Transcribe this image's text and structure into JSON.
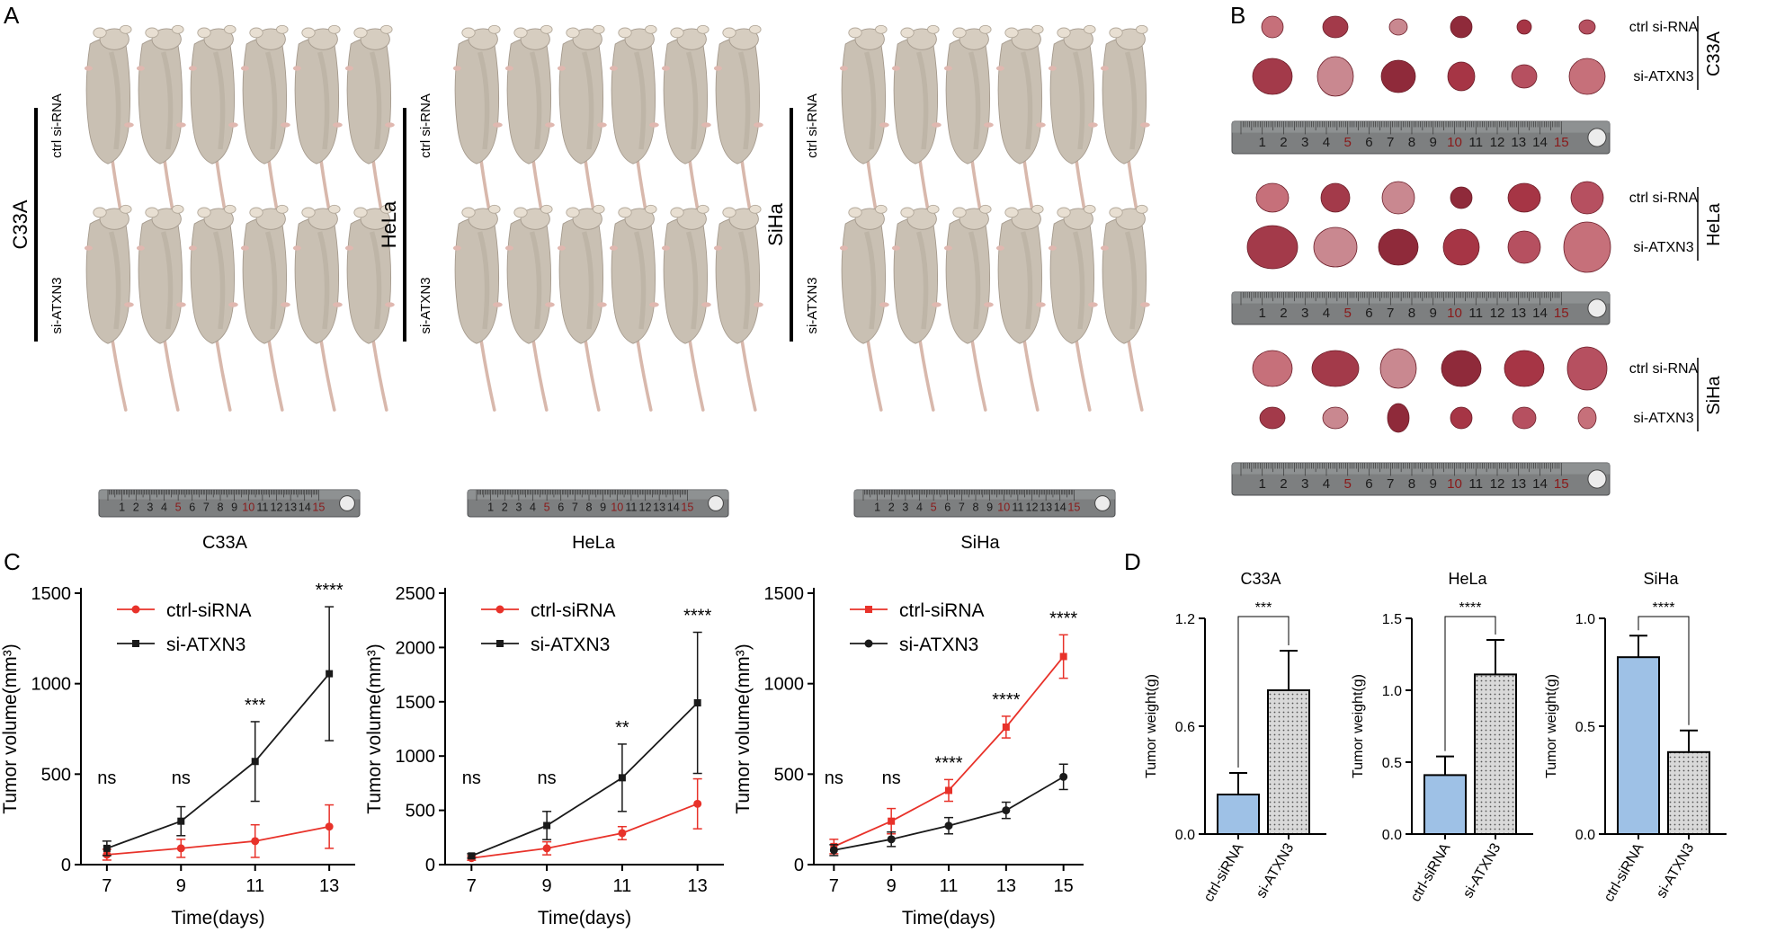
{
  "panels": {
    "A": "A",
    "B": "B",
    "C": "C",
    "D": "D"
  },
  "panelA": {
    "groups": [
      {
        "cell": "C33A",
        "ctrl": "ctrl si-RNA",
        "kd": "si-ATXN3",
        "caption": "C33A"
      },
      {
        "cell": "HeLa",
        "ctrl": "ctrl si-RNA",
        "kd": "si-ATXN3",
        "caption": "HeLa"
      },
      {
        "cell": "SiHa",
        "ctrl": "ctrl si-RNA",
        "kd": "si-ATXN3",
        "caption": "SiHa"
      }
    ],
    "ruler_numbers": [
      "1",
      "2",
      "3",
      "4",
      "5",
      "6",
      "7",
      "8",
      "9",
      "10",
      "11",
      "12",
      "13",
      "14",
      "15"
    ]
  },
  "panelB": {
    "groups": [
      {
        "cell": "C33A",
        "row1": "ctrl si-RNA",
        "row2": "si-ATXN3"
      },
      {
        "cell": "HeLa",
        "row1": "ctrl si-RNA",
        "row2": "si-ATXN3"
      },
      {
        "cell": "SiHa",
        "row1": "ctrl si-RNA",
        "row2": "si-ATXN3"
      }
    ]
  },
  "colors": {
    "red": "#e8322a",
    "black": "#1a1a1a",
    "blue": "#9ec1e6",
    "gray": "#d9d9d9"
  },
  "chart_data": [
    {
      "type": "line",
      "title": "C33A",
      "xlabel": "Time(days)",
      "ylabel": "Tumor  volume(mm³)",
      "x": [
        7,
        9,
        11,
        13
      ],
      "ylim": [
        0,
        1500
      ],
      "yticks": [
        0,
        500,
        1000,
        1500
      ],
      "series": [
        {
          "name": "ctrl-siRNA",
          "color": "#e8322a",
          "marker": "circle",
          "values": [
            55,
            90,
            130,
            210
          ],
          "errors": [
            30,
            50,
            90,
            120
          ]
        },
        {
          "name": "si-ATXN3",
          "color": "#1a1a1a",
          "marker": "square",
          "values": [
            90,
            240,
            570,
            1055
          ],
          "errors": [
            40,
            80,
            220,
            370
          ]
        }
      ],
      "significance": [
        "ns",
        "ns",
        "***",
        "****"
      ],
      "legend": "top-left"
    },
    {
      "type": "line",
      "title": "HeLa",
      "xlabel": "Time(days)",
      "ylabel": "Tumor  volume(mm³)",
      "x": [
        7,
        9,
        11,
        13
      ],
      "ylim": [
        0,
        2500
      ],
      "yticks": [
        0,
        500,
        1000,
        1500,
        2000,
        2500
      ],
      "series": [
        {
          "name": "ctrl-siRNA",
          "color": "#e8322a",
          "marker": "circle",
          "values": [
            60,
            150,
            290,
            560
          ],
          "errors": [
            20,
            60,
            60,
            230
          ]
        },
        {
          "name": "si-ATXN3",
          "color": "#1a1a1a",
          "marker": "square",
          "values": [
            80,
            360,
            800,
            1490
          ],
          "errors": [
            20,
            130,
            310,
            650
          ]
        }
      ],
      "significance": [
        "ns",
        "ns",
        "**",
        "****"
      ],
      "legend": "top-left"
    },
    {
      "type": "line",
      "title": "SiHa",
      "xlabel": "Time(days)",
      "ylabel": "Tumor  volume(mm³)",
      "x": [
        7,
        9,
        11,
        13,
        15
      ],
      "ylim": [
        0,
        1500
      ],
      "yticks": [
        0,
        500,
        1000,
        1500
      ],
      "series": [
        {
          "name": "ctrl-siRNA",
          "color": "#e8322a",
          "marker": "square",
          "values": [
            100,
            240,
            410,
            760,
            1150
          ],
          "errors": [
            40,
            70,
            60,
            60,
            120
          ]
        },
        {
          "name": "si-ATXN3",
          "color": "#1a1a1a",
          "marker": "circle",
          "values": [
            80,
            140,
            215,
            300,
            485
          ],
          "errors": [
            30,
            40,
            45,
            45,
            70
          ]
        }
      ],
      "significance": [
        "ns",
        "ns",
        "****",
        "****",
        "****"
      ],
      "legend": "top-left"
    },
    {
      "type": "bar",
      "title": "C33A",
      "ylabel": "Tumor  weight(g)",
      "categories": [
        "ctrl-siRNA",
        "si-ATXN3"
      ],
      "ylim": [
        0,
        1.2
      ],
      "yticks": [
        "0.0",
        "0.6",
        "1.2"
      ],
      "values": [
        0.22,
        0.8
      ],
      "errors": [
        0.12,
        0.22
      ],
      "significance": "***"
    },
    {
      "type": "bar",
      "title": "HeLa",
      "ylabel": "Tumor  weight(g)",
      "categories": [
        "ctrl-siRNA",
        "si-ATXN3"
      ],
      "ylim": [
        0,
        1.5
      ],
      "yticks": [
        "0.0",
        "0.5",
        "1.0",
        "1.5"
      ],
      "values": [
        0.41,
        1.11
      ],
      "errors": [
        0.13,
        0.24
      ],
      "significance": "****"
    },
    {
      "type": "bar",
      "title": "SiHa",
      "ylabel": "Tumor  weight(g)",
      "categories": [
        "ctrl-siRNA",
        "si-ATXN3"
      ],
      "ylim": [
        0,
        1.0
      ],
      "yticks": [
        "0.0",
        "0.5",
        "1.0"
      ],
      "values": [
        0.82,
        0.38
      ],
      "errors": [
        0.1,
        0.1
      ],
      "significance": "****"
    }
  ]
}
